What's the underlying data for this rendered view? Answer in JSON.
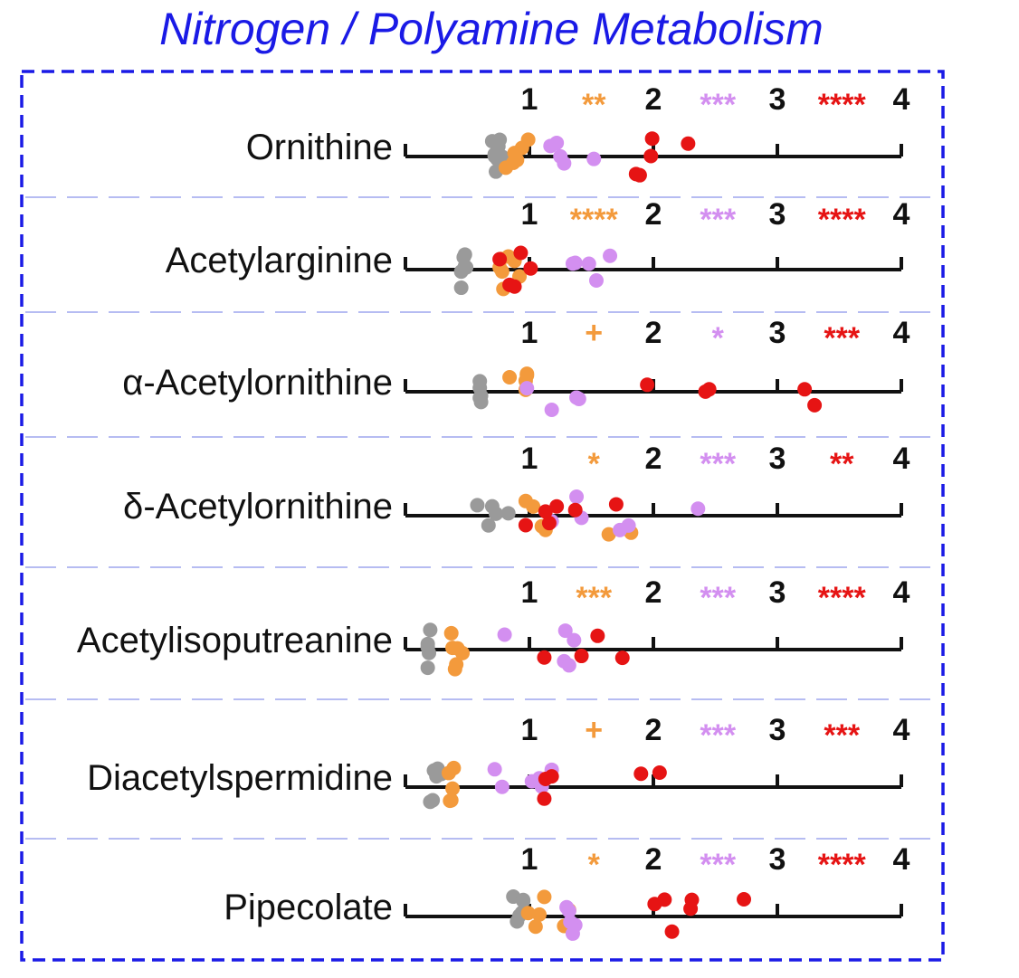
{
  "title": "Nitrogen / Polyamine Metabolism",
  "colors": {
    "group1": "#9a9a9a",
    "group2": "#f39a3c",
    "group3": "#d38ff0",
    "group4": "#e61414",
    "title": "#1a1ae6",
    "border": "#1a1ae6",
    "separator": "#9ea6ee"
  },
  "chart_data": {
    "type": "scatter",
    "x_ticks": [
      "1",
      "2",
      "3",
      "4"
    ],
    "xlim": [
      0,
      4
    ],
    "rows": [
      {
        "label": "Ornithine",
        "sig": [
          {
            "text": "**",
            "color": "#f39a3c"
          },
          {
            "text": "***",
            "color": "#d38ff0"
          },
          {
            "text": "****",
            "color": "#e61414"
          }
        ],
        "groups": [
          {
            "x": [
              0.72,
              0.74,
              0.7,
              0.75,
              0.72,
              0.78,
              0.76,
              0.73
            ]
          },
          {
            "x": [
              0.9,
              0.88,
              0.94,
              0.81,
              0.87,
              0.99
            ]
          },
          {
            "x": [
              1.25,
              1.17,
              1.28,
              1.22,
              1.52
            ]
          },
          {
            "x": [
              1.98,
              2.28,
              1.99,
              1.86,
              1.89
            ]
          }
        ]
      },
      {
        "label": "Acetylarginine",
        "sig": [
          {
            "text": "****",
            "color": "#f39a3c"
          },
          {
            "text": "***",
            "color": "#d38ff0"
          },
          {
            "text": "****",
            "color": "#e61414"
          }
        ],
        "groups": [
          {
            "x": [
              0.48,
              0.49,
              0.45,
              0.47,
              0.48,
              0.45
            ]
          },
          {
            "x": [
              0.92,
              0.88,
              0.83,
              0.79,
              0.76,
              0.77,
              0.78
            ]
          },
          {
            "x": [
              1.37,
              1.65,
              1.54,
              1.48,
              1.35
            ]
          },
          {
            "x": [
              0.93,
              0.88,
              0.76,
              0.84,
              1.01
            ]
          }
        ]
      },
      {
        "label": "α-Acetylornithine",
        "sig": [
          {
            "text": "+",
            "color": "#f39a3c"
          },
          {
            "text": "*",
            "color": "#d38ff0"
          },
          {
            "text": "***",
            "color": "#e61414"
          }
        ],
        "groups": [
          {
            "x": [
              0.6,
              0.61,
              0.6,
              0.61,
              0.6
            ]
          },
          {
            "x": [
              0.84,
              0.97,
              0.97,
              0.98,
              0.98
            ]
          },
          {
            "x": [
              0.98,
              1.4,
              1.38,
              1.18
            ]
          },
          {
            "x": [
              1.95,
              2.45,
              2.42,
              3.22,
              3.3
            ]
          }
        ]
      },
      {
        "label": "δ-Acetylornithine",
        "sig": [
          {
            "text": "*",
            "color": "#f39a3c"
          },
          {
            "text": "***",
            "color": "#d38ff0"
          },
          {
            "text": "**",
            "color": "#e61414"
          }
        ],
        "groups": [
          {
            "x": [
              0.73,
              0.83,
              0.7,
              0.58,
              0.67
            ]
          },
          {
            "x": [
              0.97,
              1.03,
              1.1,
              1.13,
              1.64,
              1.82
            ]
          },
          {
            "x": [
              1.73,
              1.8,
              1.18,
              1.42,
              1.38,
              2.36
            ]
          },
          {
            "x": [
              1.37,
              1.7,
              1.13,
              1.16,
              0.97,
              1.22
            ]
          }
        ]
      },
      {
        "label": "Acetylisoputreanine",
        "sig": [
          {
            "text": "***",
            "color": "#f39a3c"
          },
          {
            "text": "***",
            "color": "#d38ff0"
          },
          {
            "text": "****",
            "color": "#e61414"
          }
        ],
        "groups": [
          {
            "x": [
              0.18,
              0.2,
              0.18,
              0.19,
              0.18
            ]
          },
          {
            "x": [
              0.37,
              0.4,
              0.38,
              0.41,
              0.46,
              0.42
            ]
          },
          {
            "x": [
              0.8,
              1.28,
              1.32,
              1.36,
              1.29
            ]
          },
          {
            "x": [
              1.55,
              1.75,
              1.12,
              1.42
            ]
          }
        ]
      },
      {
        "label": "Diacetylspermidine",
        "sig": [
          {
            "text": "+",
            "color": "#f39a3c"
          },
          {
            "text": "***",
            "color": "#d38ff0"
          },
          {
            "text": "***",
            "color": "#e61414"
          }
        ],
        "groups": [
          {
            "x": [
              0.2,
              0.25,
              0.22,
              0.29,
              0.26,
              0.23
            ]
          },
          {
            "x": [
              0.39,
              0.38,
              0.37,
              0.36,
              0.35
            ]
          },
          {
            "x": [
              0.78,
              0.72,
              1.08,
              1.1,
              1.18,
              1.02
            ]
          },
          {
            "x": [
              1.18,
              1.13,
              1.12,
              2.05,
              1.9
            ]
          }
        ]
      },
      {
        "label": "Pipecolate",
        "sig": [
          {
            "text": "*",
            "color": "#f39a3c"
          },
          {
            "text": "***",
            "color": "#d38ff0"
          },
          {
            "text": "****",
            "color": "#e61414"
          }
        ],
        "groups": [
          {
            "x": [
              0.87,
              0.9,
              0.95,
              0.94,
              0.95,
              0.92
            ]
          },
          {
            "x": [
              0.99,
              1.12,
              1.05,
              1.08,
              1.28,
              1.32
            ]
          },
          {
            "x": [
              1.35,
              1.37,
              1.33,
              1.3,
              1.32
            ]
          },
          {
            "x": [
              2.09,
              2.15,
              2.31,
              2.73,
              2.01,
              2.3
            ]
          }
        ]
      }
    ]
  }
}
